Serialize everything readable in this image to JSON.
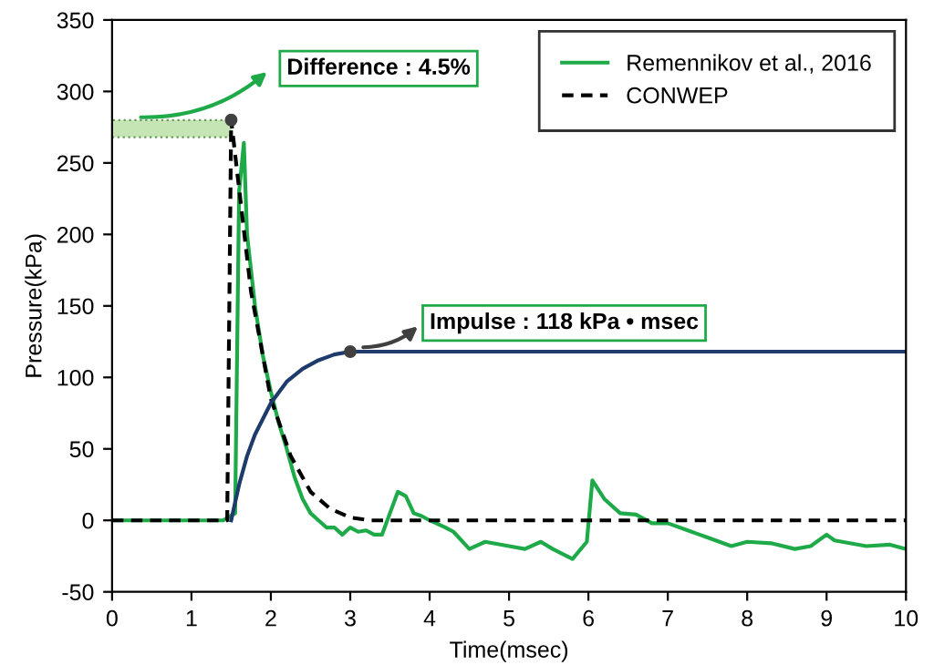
{
  "chart_data": {
    "type": "line",
    "xlabel": "Time(msec)",
    "ylabel": "Pressure(kPa)",
    "xlim": [
      0,
      10
    ],
    "ylim": [
      -50,
      350
    ],
    "xticks": [
      0,
      1,
      2,
      3,
      4,
      5,
      6,
      7,
      8,
      9,
      10
    ],
    "yticks": [
      -50,
      0,
      50,
      100,
      150,
      200,
      250,
      300,
      350
    ],
    "legend": "top right",
    "grid": false,
    "series": [
      {
        "name": "Remennikov et al., 2016",
        "color": "#1faa4a",
        "line_style": "solid",
        "x": [
          0,
          1.4,
          1.55,
          1.6,
          1.66,
          1.7,
          1.8,
          1.9,
          2.0,
          2.1,
          2.2,
          2.3,
          2.4,
          2.5,
          2.6,
          2.7,
          2.8,
          2.9,
          3.0,
          3.1,
          3.2,
          3.3,
          3.4,
          3.5,
          3.6,
          3.7,
          3.8,
          3.9,
          4.0,
          4.2,
          4.3,
          4.5,
          4.7,
          5.0,
          5.2,
          5.4,
          5.55,
          5.8,
          5.98,
          6.05,
          6.2,
          6.4,
          6.6,
          6.8,
          7.0,
          7.3,
          7.5,
          7.8,
          8.0,
          8.3,
          8.6,
          8.8,
          9.0,
          9.1,
          9.5,
          9.8,
          10
        ],
        "values": [
          0,
          0,
          5,
          230,
          264,
          200,
          150,
          115,
          90,
          68,
          50,
          30,
          15,
          5,
          0,
          -5,
          -5,
          -10,
          -5,
          -8,
          -7,
          -10,
          -10,
          5,
          20,
          17,
          5,
          3,
          0,
          -5,
          -8,
          -20,
          -15,
          -18,
          -20,
          -15,
          -20,
          -27,
          -15,
          28,
          15,
          5,
          4,
          -2,
          -2,
          -8,
          -12,
          -18,
          -15,
          -16,
          -20,
          -18,
          -10,
          -14,
          -18,
          -17,
          -20
        ]
      },
      {
        "name": "CONWEP",
        "color": "#000000",
        "line_style": "dashed",
        "x": [
          0,
          1.45,
          1.5,
          1.75,
          2.0,
          2.25,
          2.5,
          2.75,
          3.0,
          3.25,
          10
        ],
        "values": [
          0,
          0,
          280,
          160,
          85,
          45,
          20,
          8,
          2,
          0,
          0
        ]
      },
      {
        "color": "#1f3b6b",
        "line_style": "solid",
        "x": [
          1.5,
          1.6,
          1.7,
          1.8,
          2.0,
          2.2,
          2.4,
          2.6,
          2.8,
          3.0,
          10
        ],
        "values": [
          0,
          25,
          45,
          60,
          82,
          97,
          106,
          112,
          116,
          118,
          118
        ]
      }
    ],
    "bands": [
      {
        "axis": "y",
        "from": 268,
        "to": 280,
        "color": "#c5e5b4"
      }
    ],
    "annotations": [
      "Difference : 4.5%",
      {
        "text": "Impulse : 118 kPa • msec",
        "x": 3.0,
        "y": 118
      }
    ]
  }
}
